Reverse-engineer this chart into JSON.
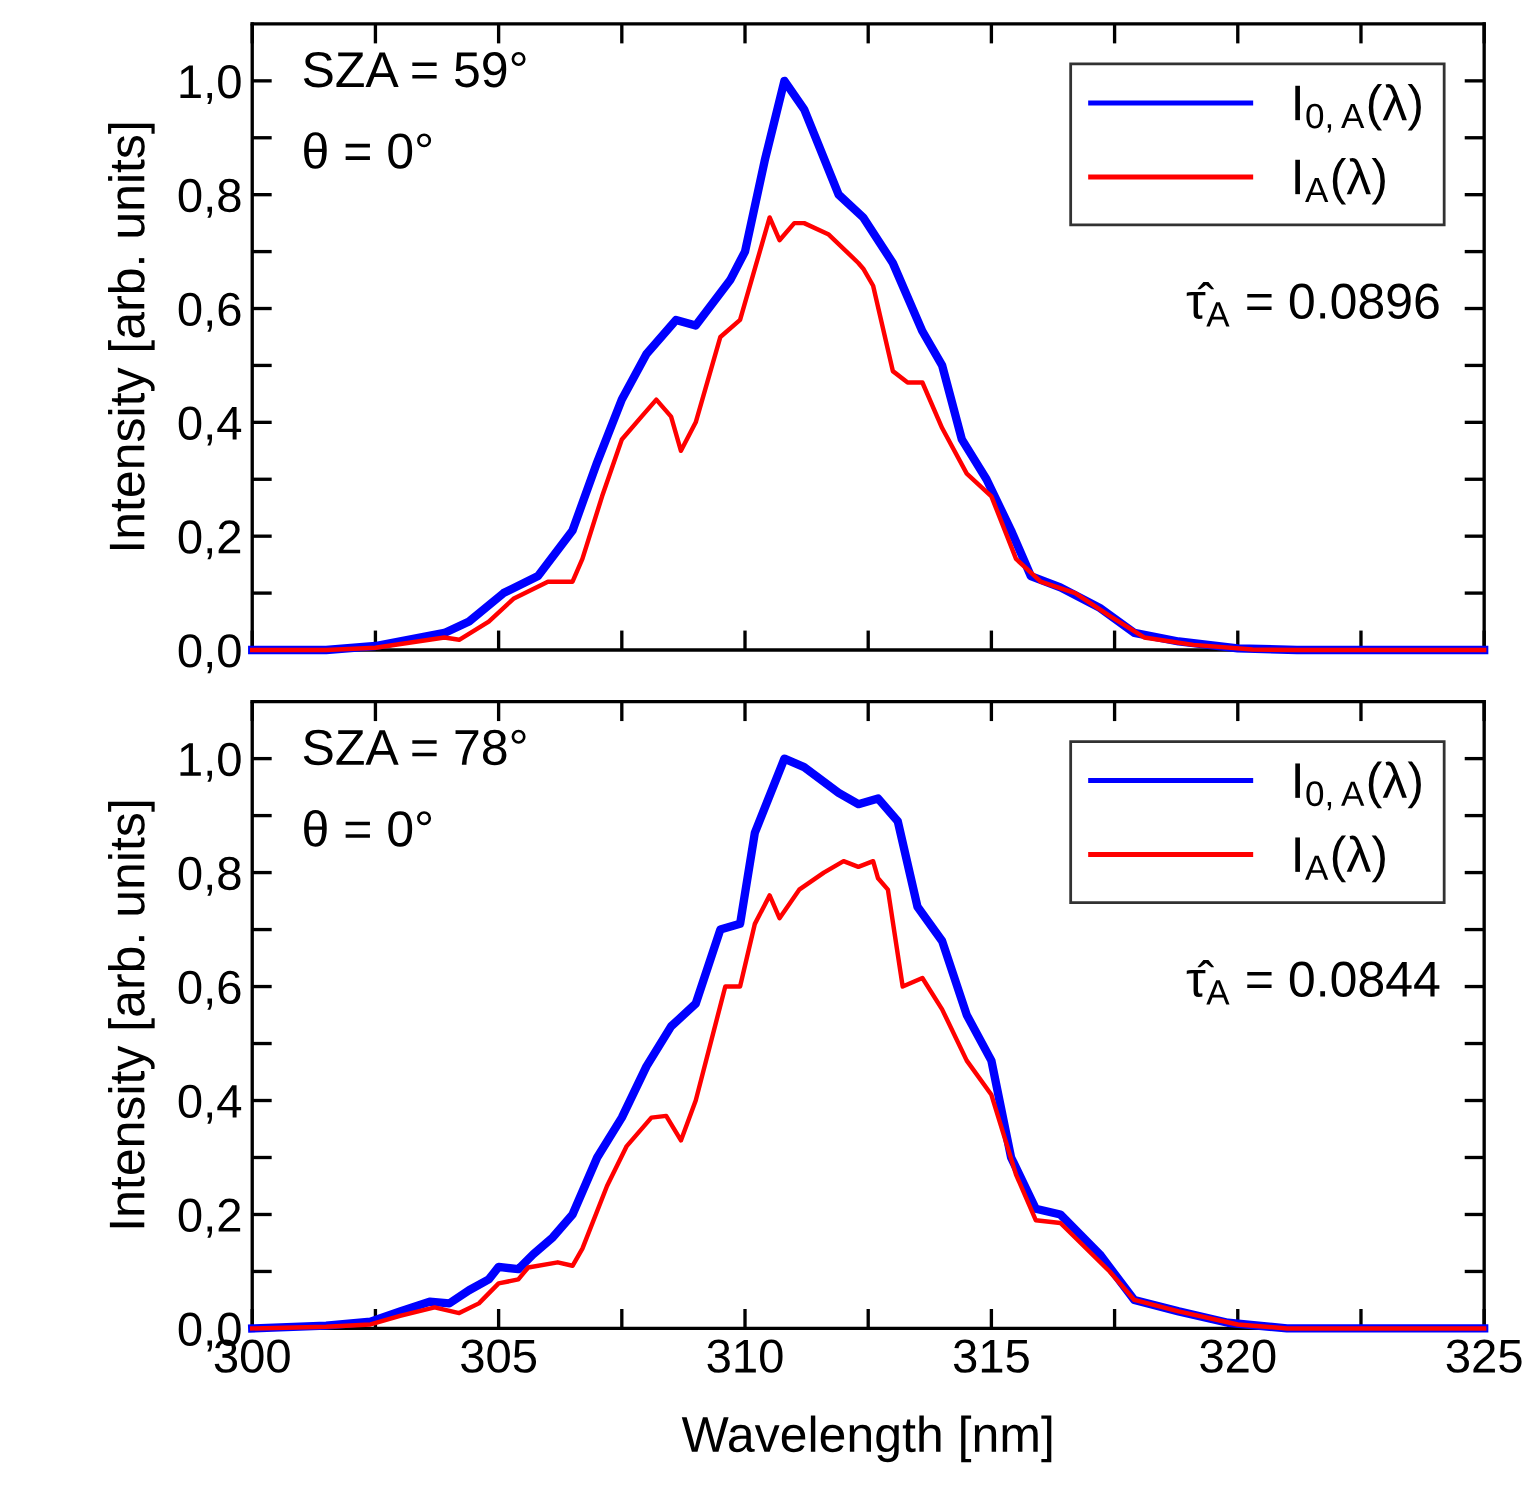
{
  "chart_data": [
    {
      "type": "line",
      "ylabel": "Intensity [arb. units]",
      "annotations": [
        "SZA = 59°",
        "θ = 0°",
        "τ̂$_{A}$ = 0.0896"
      ],
      "legend": "top right",
      "tick_labels": "y",
      "grid": false,
      "marker": "none",
      "line_style": "solid",
      "xlim": [
        300,
        325
      ],
      "xticks": [
        {
          "value": 300,
          "label": null
        },
        {
          "value": 302.5,
          "label": null
        },
        {
          "value": 305,
          "label": null
        },
        {
          "value": 307.5,
          "label": null
        },
        {
          "value": 310,
          "label": null
        },
        {
          "value": 312.5,
          "label": null
        },
        {
          "value": 315,
          "label": null
        },
        {
          "value": 317.5,
          "label": null
        },
        {
          "value": 320,
          "label": null
        },
        {
          "value": 322.5,
          "label": null
        },
        {
          "value": 325,
          "label": null
        }
      ],
      "ylim": [
        0,
        1.1
      ],
      "yticks": [
        {
          "value": 0,
          "label": "0,0"
        },
        {
          "value": 0.1,
          "label": null
        },
        {
          "value": 0.2,
          "label": "0,2"
        },
        {
          "value": 0.3,
          "label": null
        },
        {
          "value": 0.4,
          "label": "0,4"
        },
        {
          "value": 0.5,
          "label": null
        },
        {
          "value": 0.6,
          "label": "0,6"
        },
        {
          "value": 0.7,
          "label": null
        },
        {
          "value": 0.8,
          "label": "0,8"
        },
        {
          "value": 0.9,
          "label": null
        },
        {
          "value": 1.0,
          "label": "1,0"
        }
      ],
      "series": [
        {
          "name": "I$_{0,A}$(λ)",
          "color": "#0000ff",
          "x": [
            300,
            301.5,
            302.5,
            303.9,
            304.4,
            305.1,
            305.8,
            306.5,
            307.0,
            307.5,
            308.0,
            308.6,
            309.0,
            309.7,
            310.0,
            310.4,
            310.8,
            311.2,
            311.9,
            312.4,
            313.0,
            313.6,
            314.0,
            314.4,
            314.9,
            315.4,
            315.8,
            316.4,
            317.2,
            317.9,
            318.8,
            320.0,
            321.2,
            325
          ],
          "values": [
            0,
            0,
            0.007,
            0.03,
            0.05,
            0.1,
            0.13,
            0.21,
            0.33,
            0.44,
            0.52,
            0.58,
            0.57,
            0.65,
            0.7,
            0.86,
            1.0,
            0.95,
            0.8,
            0.76,
            0.68,
            0.56,
            0.5,
            0.37,
            0.3,
            0.21,
            0.13,
            0.11,
            0.074,
            0.03,
            0.015,
            0.003,
            0,
            0
          ]
        },
        {
          "name": "I$_{A}$(λ)",
          "color": "#ff0000",
          "x": [
            300,
            301.5,
            302.5,
            303.9,
            304.2,
            304.8,
            305.3,
            306.0,
            306.5,
            306.7,
            307.1,
            307.5,
            307.9,
            308.2,
            308.5,
            308.7,
            309.0,
            309.5,
            309.9,
            310.2,
            310.5,
            310.7,
            311.0,
            311.2,
            311.7,
            312.3,
            312.4,
            312.6,
            313.0,
            313.3,
            313.6,
            314.0,
            314.5,
            315.0,
            315.5,
            316.0,
            316.7,
            317.4,
            318.1,
            319.1,
            320.3,
            321.2,
            325
          ],
          "values": [
            0,
            0,
            0.004,
            0.022,
            0.018,
            0.05,
            0.09,
            0.12,
            0.12,
            0.16,
            0.27,
            0.37,
            0.41,
            0.44,
            0.41,
            0.35,
            0.4,
            0.55,
            0.58,
            0.67,
            0.76,
            0.72,
            0.75,
            0.75,
            0.73,
            0.68,
            0.67,
            0.64,
            0.49,
            0.47,
            0.47,
            0.39,
            0.31,
            0.27,
            0.16,
            0.12,
            0.1,
            0.06,
            0.022,
            0.009,
            0.001,
            0,
            0
          ]
        }
      ]
    },
    {
      "type": "line",
      "xlabel": "Wavelength [nm]",
      "ylabel": "Intensity [arb. units]",
      "annotations": [
        "SZA = 78°",
        "θ = 0°",
        "τ̂$_{A}$ = 0.0844"
      ],
      "legend": "top right",
      "grid": false,
      "marker": "none",
      "line_style": "solid",
      "xlim": [
        300,
        325
      ],
      "xticks": [
        {
          "value": 300,
          "label": "300"
        },
        {
          "value": 302.5,
          "label": null
        },
        {
          "value": 305,
          "label": "305"
        },
        {
          "value": 307.5,
          "label": null
        },
        {
          "value": 310,
          "label": "310"
        },
        {
          "value": 312.5,
          "label": null
        },
        {
          "value": 315,
          "label": "315"
        },
        {
          "value": 317.5,
          "label": null
        },
        {
          "value": 320,
          "label": "320"
        },
        {
          "value": 322.5,
          "label": null
        },
        {
          "value": 325,
          "label": "325"
        }
      ],
      "ylim": [
        0,
        1.1
      ],
      "yticks": [
        {
          "value": 0,
          "label": "0,0"
        },
        {
          "value": 0.1,
          "label": null
        },
        {
          "value": 0.2,
          "label": "0,2"
        },
        {
          "value": 0.3,
          "label": null
        },
        {
          "value": 0.4,
          "label": "0,4"
        },
        {
          "value": 0.5,
          "label": null
        },
        {
          "value": 0.6,
          "label": "0,6"
        },
        {
          "value": 0.7,
          "label": null
        },
        {
          "value": 0.8,
          "label": "0,8"
        },
        {
          "value": 0.9,
          "label": null
        },
        {
          "value": 1.0,
          "label": "1,0"
        }
      ],
      "series": [
        {
          "name": "I$_{0,A}$(λ)",
          "color": "#0000ff",
          "x": [
            300,
            301.5,
            302.4,
            303.0,
            303.6,
            304.0,
            304.4,
            304.8,
            305.0,
            305.4,
            305.7,
            306.1,
            306.5,
            307.0,
            307.5,
            308.0,
            308.5,
            309.0,
            309.5,
            309.9,
            310.2,
            310.8,
            311.2,
            311.9,
            312.3,
            312.7,
            313.1,
            313.5,
            314.0,
            314.5,
            315.0,
            315.4,
            315.9,
            316.4,
            317.2,
            317.9,
            318.8,
            319.8,
            321.0,
            325
          ],
          "values": [
            0,
            0.005,
            0.012,
            0.03,
            0.047,
            0.044,
            0.067,
            0.086,
            0.108,
            0.104,
            0.13,
            0.16,
            0.2,
            0.3,
            0.37,
            0.46,
            0.53,
            0.57,
            0.7,
            0.71,
            0.87,
            1.0,
            0.985,
            0.94,
            0.92,
            0.93,
            0.89,
            0.74,
            0.68,
            0.55,
            0.47,
            0.3,
            0.21,
            0.2,
            0.13,
            0.05,
            0.03,
            0.01,
            0,
            0
          ]
        },
        {
          "name": "I$_{A}$(λ)",
          "color": "#ff0000",
          "x": [
            300,
            301.5,
            302.4,
            303.0,
            303.7,
            304.2,
            304.6,
            305.0,
            305.4,
            305.6,
            306.2,
            306.5,
            306.7,
            307.2,
            307.6,
            308.1,
            308.4,
            308.7,
            309.0,
            309.6,
            309.9,
            310.2,
            310.5,
            310.7,
            311.1,
            311.6,
            312.0,
            312.3,
            312.6,
            312.7,
            312.9,
            313.2,
            313.6,
            314.0,
            314.5,
            315.0,
            315.5,
            315.9,
            316.4,
            317.4,
            317.9,
            318.8,
            320.0,
            321.0,
            325
          ],
          "values": [
            0,
            0.003,
            0.007,
            0.022,
            0.037,
            0.027,
            0.044,
            0.079,
            0.086,
            0.107,
            0.116,
            0.11,
            0.14,
            0.25,
            0.32,
            0.37,
            0.373,
            0.33,
            0.4,
            0.6,
            0.6,
            0.71,
            0.76,
            0.72,
            0.77,
            0.8,
            0.82,
            0.81,
            0.82,
            0.79,
            0.77,
            0.6,
            0.615,
            0.56,
            0.47,
            0.41,
            0.27,
            0.19,
            0.185,
            0.1,
            0.05,
            0.03,
            0.007,
            0,
            0
          ]
        }
      ]
    }
  ]
}
